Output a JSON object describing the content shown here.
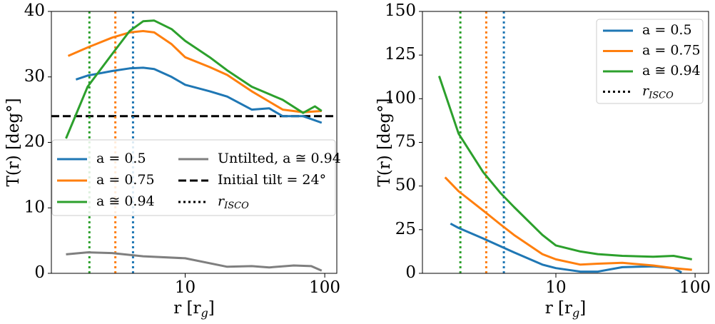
{
  "chart_data": [
    {
      "type": "line",
      "xscale": "log",
      "xlim": [
        1.1,
        122
      ],
      "ylim": [
        0,
        40
      ],
      "xticks": [
        10,
        100
      ],
      "yticks": [
        0,
        10,
        20,
        30,
        40
      ],
      "xlabel": "r [r",
      "xlabel_sub": "g",
      "xlabel_end": "]",
      "ylabel": "T(r)  [deg°]",
      "legend": "lower center",
      "series": [
        {
          "name": "a = 0.5",
          "color": "#1f77b4",
          "x": [
            1.65,
            2,
            3,
            4,
            5,
            6,
            8,
            10,
            15,
            20,
            30,
            40,
            50,
            70,
            95
          ],
          "values": [
            29.6,
            30.2,
            30.9,
            31.3,
            31.4,
            31.2,
            30,
            28.8,
            27.8,
            27,
            25,
            25.2,
            24,
            24,
            23
          ]
        },
        {
          "name": "a = 0.75",
          "color": "#ff7f0e",
          "x": [
            1.45,
            2,
            3,
            4,
            5,
            6,
            8,
            10,
            15,
            20,
            30,
            50,
            70,
            95
          ],
          "values": [
            33.2,
            34.5,
            36,
            36.8,
            37,
            36.8,
            35,
            33,
            31.5,
            30.3,
            27.8,
            25,
            24.6,
            24.8
          ]
        },
        {
          "name": "a ≅ 0.94",
          "color": "#2ca02c",
          "x": [
            1.4,
            2,
            3,
            4,
            5,
            6,
            8,
            10,
            15,
            20,
            30,
            50,
            70,
            85,
            95
          ],
          "values": [
            20.6,
            28.5,
            33.5,
            37,
            38.5,
            38.6,
            37.3,
            35.5,
            33,
            31,
            28.5,
            26.5,
            24.5,
            25.5,
            24.8
          ]
        },
        {
          "name": "Untilted, a ≅ 0.94",
          "color": "#7f7f7f",
          "x": [
            1.4,
            2,
            3,
            5,
            10,
            20,
            30,
            40,
            60,
            80,
            95
          ],
          "values": [
            2.9,
            3.2,
            3.1,
            2.6,
            2.3,
            1,
            1.1,
            0.9,
            1.2,
            1.1,
            0.4
          ]
        }
      ],
      "hline": {
        "name": "Initial tilt = 24°",
        "value": 24,
        "color": "#000000"
      },
      "vlines": {
        "label": "r",
        "label_sub": "ISCO",
        "values": [
          4.23,
          3.16,
          2.06
        ],
        "colors": [
          "#1f77b4",
          "#ff7f0e",
          "#2ca02c"
        ]
      }
    },
    {
      "type": "line",
      "xscale": "log",
      "xlim": [
        1.1,
        125
      ],
      "ylim": [
        0,
        150
      ],
      "xticks": [
        10,
        100
      ],
      "yticks": [
        0,
        25,
        50,
        75,
        100,
        125,
        150
      ],
      "xlabel": "r [r",
      "xlabel_sub": "g",
      "xlabel_end": "]",
      "ylabel": "T(r)  [deg°]",
      "legend": "upper right",
      "series": [
        {
          "name": "a = 0.5",
          "color": "#1f77b4",
          "x": [
            1.75,
            2,
            3,
            4,
            5,
            8,
            10,
            15,
            20,
            30,
            50,
            70,
            80
          ],
          "values": [
            28.5,
            26,
            20,
            15.5,
            12,
            5,
            3,
            1,
            1,
            3.5,
            4,
            3,
            0.5
          ]
        },
        {
          "name": "a = 0.75",
          "color": "#ff7f0e",
          "x": [
            1.6,
            2,
            3,
            4,
            5,
            8,
            10,
            15,
            20,
            30,
            50,
            70,
            95
          ],
          "values": [
            55,
            47,
            36,
            28,
            22,
            11,
            8,
            5,
            5.5,
            6,
            4.5,
            3,
            2
          ]
        },
        {
          "name": "a ≅ 0.94",
          "color": "#2ca02c",
          "x": [
            1.45,
            2,
            3,
            4,
            5,
            8,
            10,
            15,
            20,
            30,
            50,
            70,
            95
          ],
          "values": [
            113,
            80,
            58,
            46,
            38,
            22,
            16,
            12.5,
            11,
            10,
            9.5,
            10,
            8
          ]
        }
      ],
      "vlines": {
        "label": "r",
        "label_sub": "ISCO",
        "values": [
          4.23,
          3.16,
          2.06
        ],
        "colors": [
          "#1f77b4",
          "#ff7f0e",
          "#2ca02c"
        ]
      }
    }
  ]
}
